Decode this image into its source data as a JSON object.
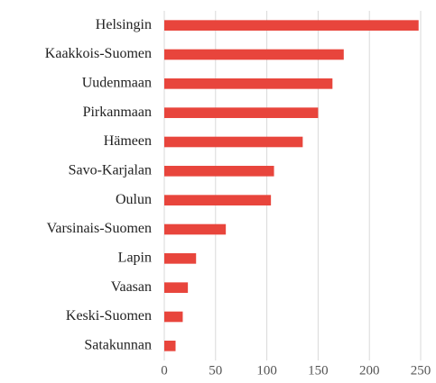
{
  "chart_data": {
    "type": "bar",
    "orientation": "horizontal",
    "categories": [
      "Helsingin",
      "Kaakkois-Suomen",
      "Uudenmaan",
      "Pirkanmaan",
      "Hämeen",
      "Savo-Karjalan",
      "Oulun",
      "Varsinais-Suomen",
      "Lapin",
      "Vaasan",
      "Keski-Suomen",
      "Satakunnan"
    ],
    "values": [
      248,
      175,
      164,
      150,
      135,
      107,
      104,
      60,
      31,
      23,
      18,
      11
    ],
    "color": "#e8453c",
    "xlim": [
      0,
      250
    ],
    "xticks": [
      0,
      50,
      100,
      150,
      200,
      250
    ],
    "grid": true
  }
}
